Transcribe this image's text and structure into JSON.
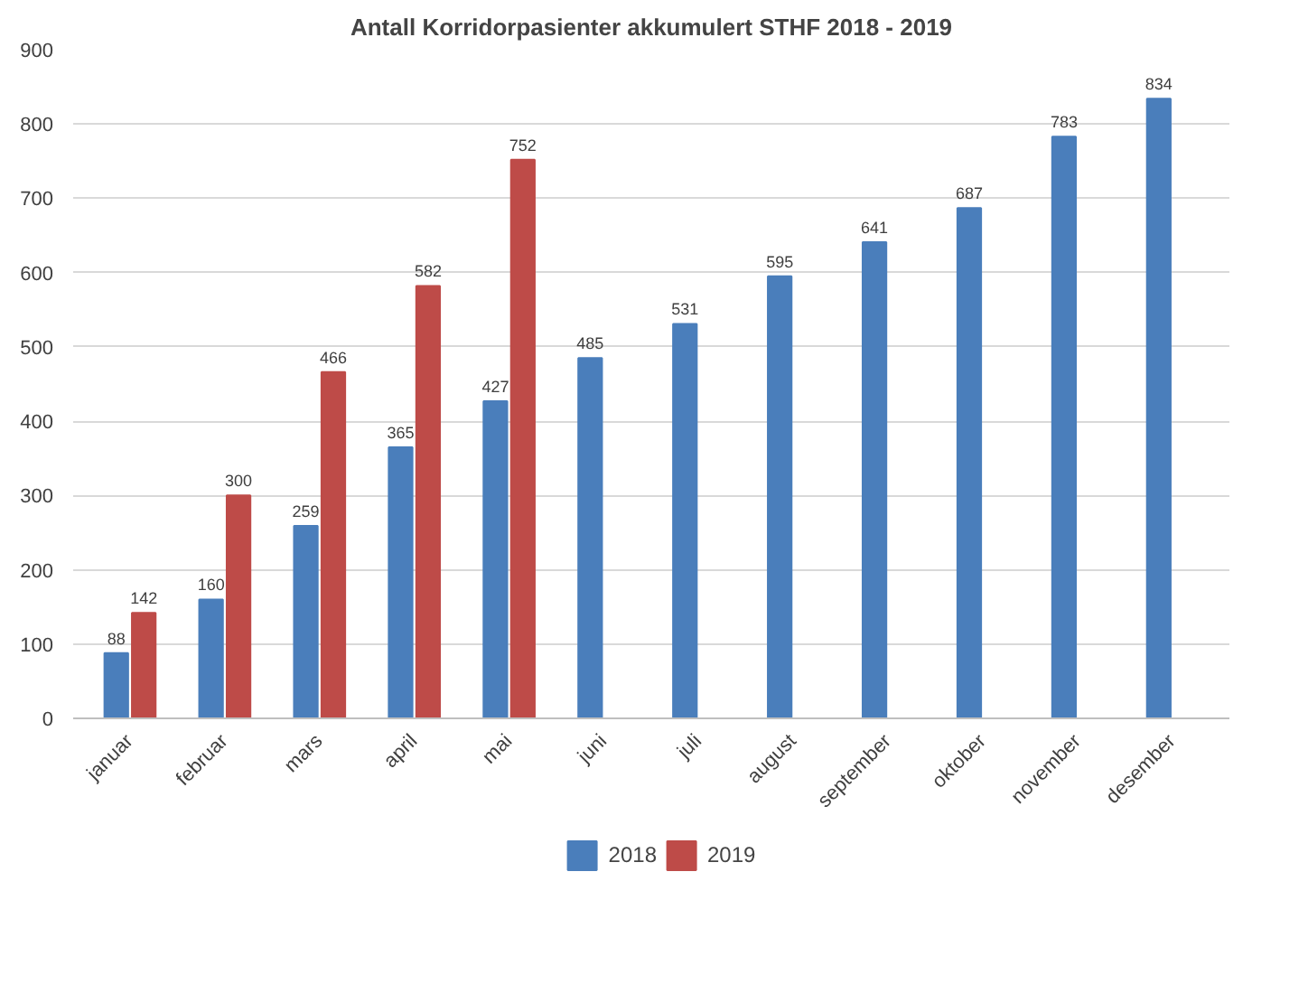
{
  "chart_data": {
    "type": "bar",
    "title": "Antall Korridorpasienter akkumulert STHF 2018 - 2019",
    "categories": [
      "januar",
      "februar",
      "mars",
      "april",
      "mai",
      "juni",
      "juli",
      "august",
      "september",
      "oktober",
      "november",
      "desember"
    ],
    "series": [
      {
        "name": "2018",
        "color": "#4a7ebb",
        "values": [
          88,
          160,
          259,
          365,
          427,
          485,
          531,
          595,
          641,
          687,
          783,
          834
        ]
      },
      {
        "name": "2019",
        "color": "#be4b48",
        "values": [
          142,
          300,
          466,
          582,
          752,
          null,
          null,
          null,
          null,
          null,
          null,
          null
        ]
      }
    ],
    "ylim": [
      0,
      900
    ],
    "yticks": [
      0,
      100,
      200,
      300,
      400,
      500,
      600,
      700,
      800,
      900
    ],
    "grid": "y",
    "legend": "bottom",
    "data_labels": true
  }
}
